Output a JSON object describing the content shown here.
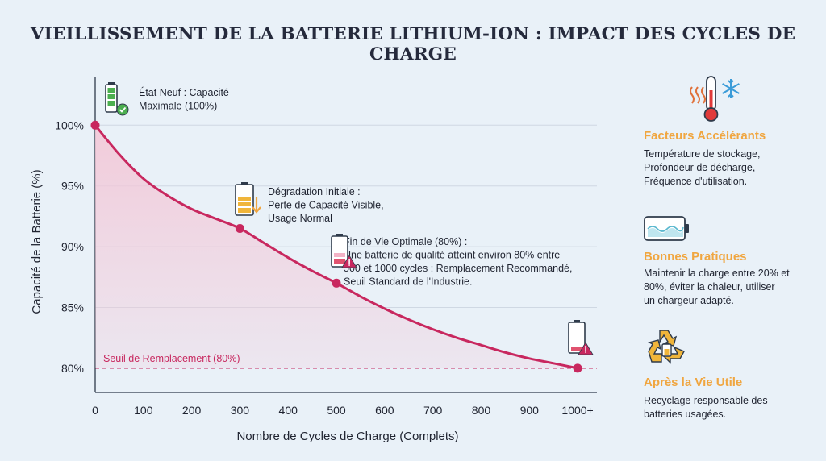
{
  "title": "VIEILLISSEMENT DE LA BATTERIE LITHIUM-ION : IMPACT DES CYCLES DE CHARGE",
  "colors": {
    "curve": "#c8285f",
    "fill": "#f3c7d7",
    "threshold": "#c8285f",
    "accent": "#f0a640",
    "text": "#1f2330"
  },
  "chart_data": {
    "type": "line",
    "xlabel": "Nombre de Cycles de Charge (Complets)",
    "ylabel": "Capacité de la Batterie (%)",
    "x_tick_labels": [
      "0",
      "100",
      "200",
      "300",
      "400",
      "500",
      "600",
      "700",
      "800",
      "900",
      "1000+"
    ],
    "x_ticks": [
      0,
      100,
      200,
      300,
      400,
      500,
      600,
      700,
      800,
      900,
      1000
    ],
    "y_tick_labels": [
      "80%",
      "85%",
      "90%",
      "95%",
      "100%"
    ],
    "y_ticks": [
      80,
      85,
      90,
      95,
      100
    ],
    "xlim": [
      0,
      1040
    ],
    "ylim": [
      78,
      104
    ],
    "grid": true,
    "series": [
      {
        "x": [
          0,
          50,
          100,
          150,
          200,
          250,
          300,
          350,
          400,
          450,
          500,
          550,
          600,
          650,
          700,
          750,
          800,
          850,
          900,
          950,
          1000
        ],
        "y": [
          100,
          97.6,
          95.6,
          94.2,
          93.1,
          92.3,
          91.5,
          90.3,
          89.1,
          88.0,
          87.0,
          85.9,
          84.9,
          84.0,
          83.2,
          82.5,
          81.9,
          81.3,
          80.8,
          80.4,
          80.0
        ]
      }
    ],
    "markers": [
      {
        "x": 0,
        "y": 100
      },
      {
        "x": 300,
        "y": 91.5
      },
      {
        "x": 500,
        "y": 87.0
      },
      {
        "x": 1000,
        "y": 80.0
      }
    ],
    "threshold": {
      "y": 80,
      "label": "Seuil de Remplacement (80%)"
    },
    "annotations": [
      {
        "lines": [
          "État Neuf : Capacité",
          "Maximale (100%)"
        ],
        "icon": "battery-full-check-icon"
      },
      {
        "lines": [
          "Dégradation Initiale :",
          "Perte de Capacité Visible,",
          "Usage Normal"
        ],
        "icon": "battery-half-down-icon"
      },
      {
        "lines": [
          "Fin de Vie Optimale (80%) :",
          "Une batterie de qualité atteint environ 80% entre",
          "500 et 1000 cycles : Remplacement Recommandé,",
          "Seuil Standard de l'Industrie."
        ],
        "icon": "battery-low-warning-icon"
      }
    ]
  },
  "sidebar": {
    "items": [
      {
        "title": "Facteurs Accélérants",
        "lines": [
          "Température de stockage,",
          "Profondeur de décharge,",
          "Fréquence d'utilisation."
        ],
        "icon": "thermometer-snowflake-icon"
      },
      {
        "title": "Bonnes Pratiques",
        "lines": [
          "Maintenir la charge entre 20% et",
          "80%, éviter la chaleur, utiliser",
          "un chargeur adapté."
        ],
        "icon": "battery-wave-icon"
      },
      {
        "title": "Après la Vie Utile",
        "lines": [
          "Recyclage responsable des",
          "batteries usagées."
        ],
        "icon": "recycle-battery-icon"
      }
    ]
  }
}
